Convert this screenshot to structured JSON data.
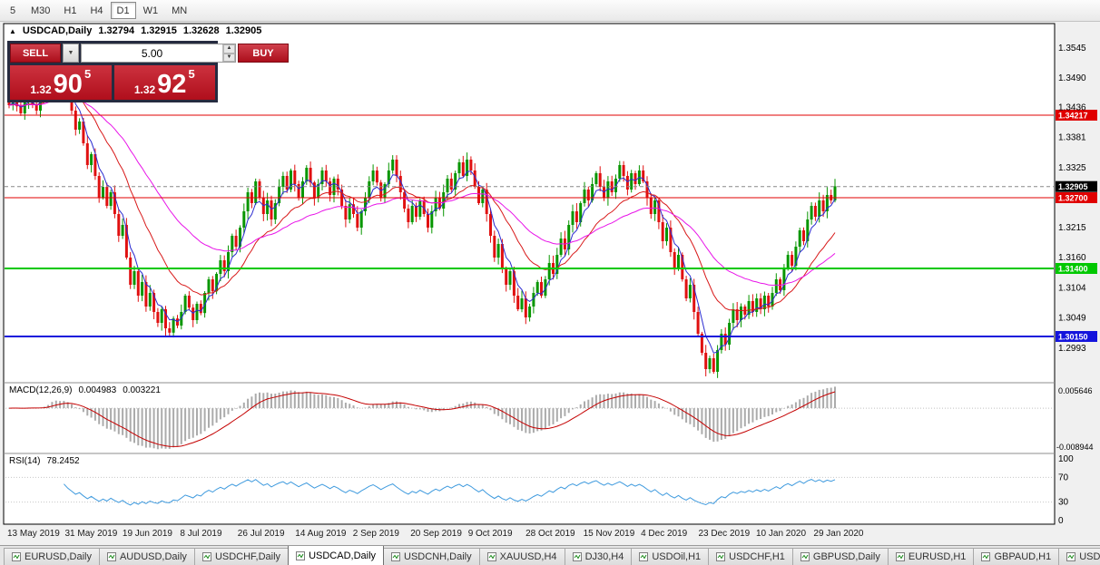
{
  "toolbar": {
    "timeframes": [
      {
        "label": "5",
        "active": false
      },
      {
        "label": "M30",
        "active": false
      },
      {
        "label": "H1",
        "active": false
      },
      {
        "label": "H4",
        "active": false
      },
      {
        "label": "D1",
        "active": true
      },
      {
        "label": "W1",
        "active": false
      },
      {
        "label": "MN",
        "active": false
      }
    ]
  },
  "chart_header": {
    "marker": "▲",
    "symbol": "USDCAD,Daily",
    "open": "1.32794",
    "high": "1.32915",
    "low": "1.32628",
    "close": "1.32905"
  },
  "trade_panel": {
    "sell_label": "SELL",
    "buy_label": "BUY",
    "volume": "5.00",
    "dropdown_glyph": "▼",
    "spin_up": "▲",
    "spin_down": "▼",
    "sell_price": {
      "prefix": "1.32",
      "big": "90",
      "sup": "5"
    },
    "buy_price": {
      "prefix": "1.32",
      "big": "92",
      "sup": "5"
    },
    "colors": {
      "panel_bg": "#262b40",
      "button": "#c4101f",
      "price_box": "#c4101f"
    }
  },
  "price_axis": {
    "ticks": [
      "1.3545",
      "1.3490",
      "1.3436",
      "1.3381",
      "1.3325",
      "1.3215",
      "1.3160",
      "1.3104",
      "1.3049",
      "1.2993"
    ]
  },
  "hlines": [
    {
      "value": 1.34217,
      "label": "1.34217",
      "color": "#e00000",
      "width": 1
    },
    {
      "value": 1.327,
      "label": "1.32700",
      "color": "#e00000",
      "width": 1
    },
    {
      "value": 1.314,
      "label": "1.31400",
      "color": "#00c800",
      "width": 2
    },
    {
      "value": 1.3015,
      "label": "1.30150",
      "color": "#1414dc",
      "width": 2
    }
  ],
  "current_price": {
    "value": 1.32905,
    "label": "1.32905"
  },
  "chart_data": {
    "type": "candlestick",
    "symbol": "USDCAD",
    "timeframe": "Daily",
    "title": "USDCAD,Daily",
    "y_range": [
      1.294,
      1.358
    ],
    "x_labels": [
      "13 May 2019",
      "31 May 2019",
      "19 Jun 2019",
      "8 Jul 2019",
      "26 Jul 2019",
      "14 Aug 2019",
      "2 Sep 2019",
      "20 Sep 2019",
      "9 Oct 2019",
      "28 Oct 2019",
      "15 Nov 2019",
      "4 Dec 2019",
      "23 Dec 2019",
      "10 Jan 2020",
      "29 Jan 2020"
    ],
    "closes": [
      1.344,
      1.3452,
      1.3438,
      1.3425,
      1.3445,
      1.346,
      1.3442,
      1.343,
      1.3455,
      1.347,
      1.35,
      1.3545,
      1.352,
      1.348,
      1.3495,
      1.346,
      1.343,
      1.3395,
      1.341,
      1.337,
      1.333,
      1.335,
      1.331,
      1.327,
      1.329,
      1.3255,
      1.328,
      1.324,
      1.32,
      1.322,
      1.316,
      1.311,
      1.3135,
      1.309,
      1.3115,
      1.307,
      1.3095,
      1.306,
      1.304,
      1.3065,
      1.303,
      1.3022,
      1.3048,
      1.3035,
      1.306,
      1.309,
      1.3068,
      1.3045,
      1.3075,
      1.3058,
      1.3095,
      1.312,
      1.3098,
      1.313,
      1.3155,
      1.3135,
      1.317,
      1.32,
      1.318,
      1.3215,
      1.3245,
      1.328,
      1.326,
      1.33,
      1.327,
      1.324,
      1.3265,
      1.323,
      1.326,
      1.329,
      1.331,
      1.3285,
      1.332,
      1.3295,
      1.327,
      1.33,
      1.3325,
      1.3298,
      1.327,
      1.3295,
      1.332,
      1.33,
      1.3275,
      1.3305,
      1.3285,
      1.3255,
      1.323,
      1.3258,
      1.324,
      1.3215,
      1.3245,
      1.327,
      1.33,
      1.332,
      1.3298,
      1.327,
      1.3295,
      1.332,
      1.334,
      1.331,
      1.328,
      1.325,
      1.3225,
      1.3255,
      1.3235,
      1.3265,
      1.324,
      1.3215,
      1.3245,
      1.327,
      1.325,
      1.328,
      1.3305,
      1.3285,
      1.3315,
      1.3335,
      1.331,
      1.334,
      1.332,
      1.329,
      1.326,
      1.3285,
      1.324,
      1.32,
      1.316,
      1.3185,
      1.314,
      1.311,
      1.3135,
      1.309,
      1.3065,
      1.3085,
      1.305,
      1.307,
      1.3095,
      1.3115,
      1.309,
      1.312,
      1.315,
      1.313,
      1.3165,
      1.3195,
      1.3175,
      1.322,
      1.3245,
      1.3225,
      1.326,
      1.3285,
      1.3265,
      1.3295,
      1.3315,
      1.329,
      1.327,
      1.33,
      1.328,
      1.3305,
      1.333,
      1.331,
      1.3285,
      1.3315,
      1.3295,
      1.332,
      1.33,
      1.327,
      1.324,
      1.3265,
      1.3225,
      1.319,
      1.3215,
      1.317,
      1.314,
      1.3165,
      1.312,
      1.3085,
      1.311,
      1.306,
      1.302,
      1.2985,
      1.2955,
      1.2975,
      1.295,
      1.299,
      1.302,
      1.3,
      1.304,
      1.3065,
      1.3045,
      1.307,
      1.3055,
      1.308,
      1.306,
      1.3085,
      1.3065,
      1.309,
      1.307,
      1.3095,
      1.312,
      1.31,
      1.314,
      1.3165,
      1.3145,
      1.318,
      1.321,
      1.319,
      1.323,
      1.3255,
      1.3235,
      1.3265,
      1.3245,
      1.3275,
      1.3265,
      1.3291
    ],
    "candle_colors": {
      "up": "#089600",
      "down": "#e01010"
    },
    "moving_averages": [
      {
        "name": "fast",
        "period": 5,
        "color": "#2b2bd0"
      },
      {
        "name": "medium",
        "period": 18,
        "color": "#d81919"
      },
      {
        "name": "slow",
        "period": 42,
        "color": "#e813e8"
      }
    ],
    "macd": {
      "label": "MACD(12,26,9)",
      "value": "0.004983",
      "signal_value": "0.003221",
      "params": [
        12,
        26,
        9
      ],
      "axis_max": "0.005646",
      "axis_min": "-0.008944",
      "histogram_color": "#ababab",
      "signal_color": "#c40000"
    },
    "rsi": {
      "label": "RSI(14)",
      "value": "78.2452",
      "period": 14,
      "levels": [
        "100",
        "70",
        "30",
        "0"
      ],
      "line_color": "#3e9ade"
    }
  },
  "tabs": [
    {
      "label": "EURUSD,Daily",
      "active": false
    },
    {
      "label": "AUDUSD,Daily",
      "active": false
    },
    {
      "label": "USDCHF,Daily",
      "active": false
    },
    {
      "label": "USDCAD,Daily",
      "active": true
    },
    {
      "label": "USDCNH,Daily",
      "active": false
    },
    {
      "label": "XAUUSD,H4",
      "active": false
    },
    {
      "label": "DJ30,H4",
      "active": false
    },
    {
      "label": "USDOil,H1",
      "active": false
    },
    {
      "label": "USDCHF,H1",
      "active": false
    },
    {
      "label": "GBPUSD,Daily",
      "active": false
    },
    {
      "label": "EURUSD,H1",
      "active": false
    },
    {
      "label": "GBPAUD,H1",
      "active": false
    },
    {
      "label": "USD",
      "active": false
    }
  ]
}
